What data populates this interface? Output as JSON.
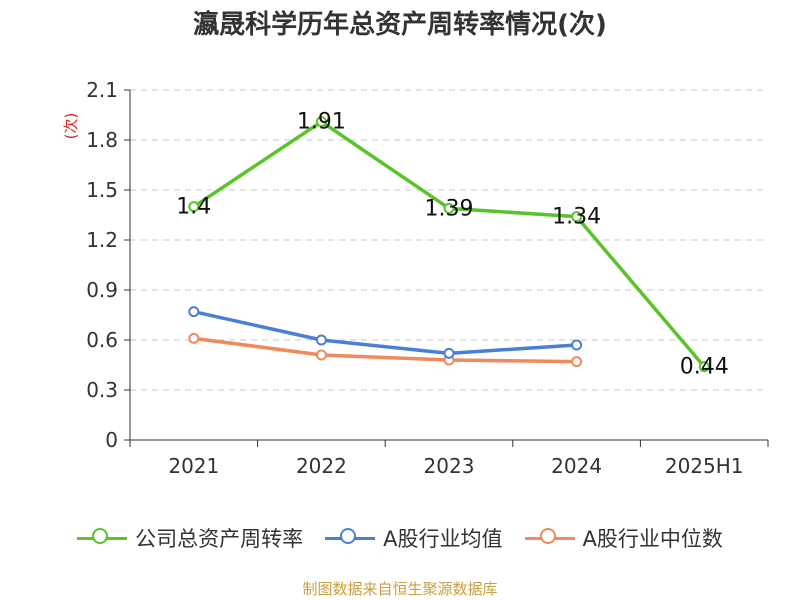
{
  "title": "瀛晟科学历年总资产周转率情况(次)",
  "source": "制图数据来自恒生聚源数据库",
  "chart_data": {
    "type": "line",
    "title": "瀛晟科学历年总资产周转率情况(次)",
    "ylabel": "(次)",
    "xlabel": "",
    "ylim": [
      0,
      2.1
    ],
    "yticks": [
      "0",
      "0.3",
      "0.6",
      "0.9",
      "1.2",
      "1.5",
      "1.8",
      "2.1"
    ],
    "categories": [
      "2021",
      "2022",
      "2023",
      "2024",
      "2025H1"
    ],
    "grid": true,
    "legend_position": "bottom",
    "series": [
      {
        "name": "公司总资产周转率",
        "color": "#5ac32a",
        "values": [
          1.4,
          1.91,
          1.39,
          1.34,
          0.44
        ],
        "labels": [
          "1.4",
          "1.91",
          "1.39",
          "1.34",
          "0.44"
        ]
      },
      {
        "name": "A股行业均值",
        "color": "#4a7fd6",
        "values": [
          0.77,
          0.6,
          0.52,
          0.57,
          null
        ]
      },
      {
        "name": "A股行业中位数",
        "color": "#f08a5a",
        "values": [
          0.61,
          0.51,
          0.48,
          0.47,
          null
        ]
      }
    ]
  }
}
